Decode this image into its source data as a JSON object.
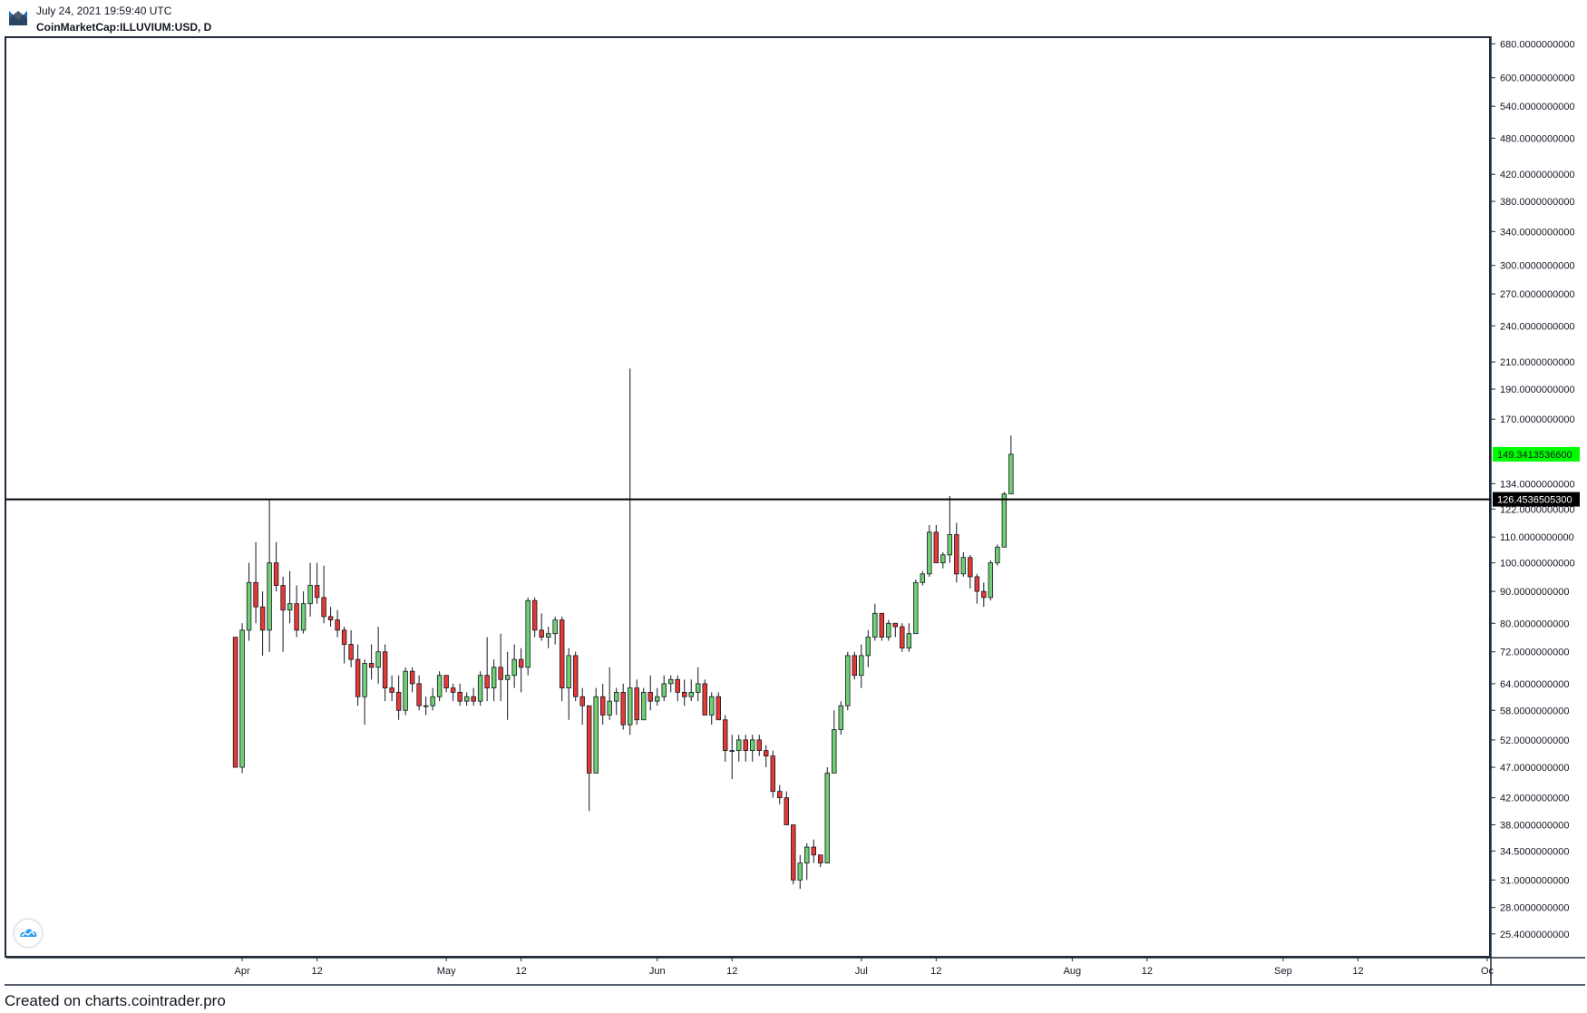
{
  "header": {
    "date": "July 24, 2021 19:59:40 UTC",
    "symbol": "CoinMarketCap:ILLUVIUM:USD, D",
    "logo_icon": "tradingview-logo-icon"
  },
  "footer": {
    "text": "Created on charts.cointrader.pro"
  },
  "watermark_icon": "tradingview-cloud-icon",
  "colors": {
    "up": "#6fcf72",
    "down": "#e53935",
    "wick": "#131722",
    "line": "#000000",
    "last_price_bg": "#00ff00"
  },
  "chart_data": {
    "type": "candlestick",
    "title": "",
    "scale": "log",
    "ylim": [
      23.5,
      690
    ],
    "y_ticks": [
      "680.0000000000",
      "600.0000000000",
      "540.0000000000",
      "480.0000000000",
      "420.0000000000",
      "380.0000000000",
      "340.0000000000",
      "300.0000000000",
      "270.0000000000",
      "240.0000000000",
      "210.0000000000",
      "190.0000000000",
      "170.0000000000",
      "134.0000000000",
      "122.0000000000",
      "110.0000000000",
      "100.0000000000",
      "90.0000000000",
      "80.0000000000",
      "72.0000000000",
      "64.0000000000",
      "58.0000000000",
      "52.0000000000",
      "47.0000000000",
      "42.0000000000",
      "38.0000000000",
      "34.5000000000",
      "31.0000000000",
      "28.0000000000",
      "25.4000000000"
    ],
    "x_ticks": [
      {
        "label": "Apr",
        "date": "2021-04-01"
      },
      {
        "label": "12",
        "date": "2021-04-12"
      },
      {
        "label": "May",
        "date": "2021-05-01"
      },
      {
        "label": "12",
        "date": "2021-05-12"
      },
      {
        "label": "Jun",
        "date": "2021-06-01"
      },
      {
        "label": "12",
        "date": "2021-06-12"
      },
      {
        "label": "Jul",
        "date": "2021-07-01"
      },
      {
        "label": "12",
        "date": "2021-07-12"
      },
      {
        "label": "Aug",
        "date": "2021-08-01"
      },
      {
        "label": "12",
        "date": "2021-08-12"
      },
      {
        "label": "Sep",
        "date": "2021-09-01"
      },
      {
        "label": "12",
        "date": "2021-09-12"
      },
      {
        "label": "Oc",
        "date": "2021-10-01"
      }
    ],
    "x_range": [
      "2021-03-02",
      "2021-10-01"
    ],
    "horizontal_line": {
      "value": 126.45365053,
      "label": "126.4536505300"
    },
    "last_price": {
      "value": 149.34135366,
      "label": "149.3413536600"
    },
    "candles": [
      {
        "date": "2021-03-31",
        "o": 76,
        "h": 76,
        "l": 47,
        "c": 47
      },
      {
        "date": "2021-04-01",
        "o": 47,
        "h": 80,
        "l": 46,
        "c": 78
      },
      {
        "date": "2021-04-02",
        "o": 78,
        "h": 100,
        "l": 75,
        "c": 93
      },
      {
        "date": "2021-04-03",
        "o": 93,
        "h": 108,
        "l": 80,
        "c": 85
      },
      {
        "date": "2021-04-04",
        "o": 85,
        "h": 90,
        "l": 71,
        "c": 78
      },
      {
        "date": "2021-04-05",
        "o": 78,
        "h": 126,
        "l": 72,
        "c": 100
      },
      {
        "date": "2021-04-06",
        "o": 100,
        "h": 108,
        "l": 90,
        "c": 92
      },
      {
        "date": "2021-04-07",
        "o": 92,
        "h": 95,
        "l": 72,
        "c": 84
      },
      {
        "date": "2021-04-08",
        "o": 84,
        "h": 97,
        "l": 80,
        "c": 86
      },
      {
        "date": "2021-04-09",
        "o": 86,
        "h": 92,
        "l": 76,
        "c": 78
      },
      {
        "date": "2021-04-10",
        "o": 78,
        "h": 90,
        "l": 77,
        "c": 86
      },
      {
        "date": "2021-04-11",
        "o": 86,
        "h": 100,
        "l": 82,
        "c": 92
      },
      {
        "date": "2021-04-12",
        "o": 92,
        "h": 100,
        "l": 86,
        "c": 88
      },
      {
        "date": "2021-04-13",
        "o": 88,
        "h": 99,
        "l": 80,
        "c": 82
      },
      {
        "date": "2021-04-14",
        "o": 82,
        "h": 85,
        "l": 79,
        "c": 81
      },
      {
        "date": "2021-04-15",
        "o": 81,
        "h": 84,
        "l": 76,
        "c": 78
      },
      {
        "date": "2021-04-16",
        "o": 78,
        "h": 79,
        "l": 69,
        "c": 74
      },
      {
        "date": "2021-04-17",
        "o": 74,
        "h": 78,
        "l": 68,
        "c": 70
      },
      {
        "date": "2021-04-18",
        "o": 70,
        "h": 74,
        "l": 59,
        "c": 61
      },
      {
        "date": "2021-04-19",
        "o": 61,
        "h": 70,
        "l": 55,
        "c": 69
      },
      {
        "date": "2021-04-20",
        "o": 69,
        "h": 74,
        "l": 65,
        "c": 68
      },
      {
        "date": "2021-04-21",
        "o": 68,
        "h": 79,
        "l": 64,
        "c": 72
      },
      {
        "date": "2021-04-22",
        "o": 72,
        "h": 74,
        "l": 60,
        "c": 63
      },
      {
        "date": "2021-04-23",
        "o": 63,
        "h": 66,
        "l": 60,
        "c": 62
      },
      {
        "date": "2021-04-24",
        "o": 62,
        "h": 66,
        "l": 56,
        "c": 58
      },
      {
        "date": "2021-04-25",
        "o": 58,
        "h": 68,
        "l": 57,
        "c": 67
      },
      {
        "date": "2021-04-26",
        "o": 67,
        "h": 68,
        "l": 62,
        "c": 64
      },
      {
        "date": "2021-04-27",
        "o": 64,
        "h": 66,
        "l": 58,
        "c": 59
      },
      {
        "date": "2021-04-28",
        "o": 59,
        "h": 61,
        "l": 57,
        "c": 59
      },
      {
        "date": "2021-04-29",
        "o": 59,
        "h": 63,
        "l": 58,
        "c": 61
      },
      {
        "date": "2021-04-30",
        "o": 61,
        "h": 67,
        "l": 60,
        "c": 66
      },
      {
        "date": "2021-05-01",
        "o": 66,
        "h": 66,
        "l": 62,
        "c": 63
      },
      {
        "date": "2021-05-02",
        "o": 63,
        "h": 64,
        "l": 60,
        "c": 62
      },
      {
        "date": "2021-05-03",
        "o": 62,
        "h": 64,
        "l": 59,
        "c": 60
      },
      {
        "date": "2021-05-04",
        "o": 60,
        "h": 62,
        "l": 59,
        "c": 61
      },
      {
        "date": "2021-05-05",
        "o": 61,
        "h": 63,
        "l": 59,
        "c": 60
      },
      {
        "date": "2021-05-06",
        "o": 60,
        "h": 67,
        "l": 59,
        "c": 66
      },
      {
        "date": "2021-05-07",
        "o": 66,
        "h": 76,
        "l": 60,
        "c": 63
      },
      {
        "date": "2021-05-08",
        "o": 63,
        "h": 70,
        "l": 60,
        "c": 68
      },
      {
        "date": "2021-05-09",
        "o": 68,
        "h": 77,
        "l": 60,
        "c": 65
      },
      {
        "date": "2021-05-10",
        "o": 65,
        "h": 72,
        "l": 56,
        "c": 66
      },
      {
        "date": "2021-05-11",
        "o": 66,
        "h": 74,
        "l": 63,
        "c": 70
      },
      {
        "date": "2021-05-12",
        "o": 70,
        "h": 73,
        "l": 62,
        "c": 68
      },
      {
        "date": "2021-05-13",
        "o": 68,
        "h": 88,
        "l": 66,
        "c": 87
      },
      {
        "date": "2021-05-14",
        "o": 87,
        "h": 88,
        "l": 76,
        "c": 78
      },
      {
        "date": "2021-05-15",
        "o": 78,
        "h": 83,
        "l": 75,
        "c": 76
      },
      {
        "date": "2021-05-16",
        "o": 76,
        "h": 79,
        "l": 73,
        "c": 77
      },
      {
        "date": "2021-05-17",
        "o": 77,
        "h": 82,
        "l": 74,
        "c": 81
      },
      {
        "date": "2021-05-18",
        "o": 81,
        "h": 82,
        "l": 60,
        "c": 63
      },
      {
        "date": "2021-05-19",
        "o": 63,
        "h": 73,
        "l": 56,
        "c": 71
      },
      {
        "date": "2021-05-20",
        "o": 71,
        "h": 72,
        "l": 60,
        "c": 61
      },
      {
        "date": "2021-05-21",
        "o": 61,
        "h": 63,
        "l": 55,
        "c": 59
      },
      {
        "date": "2021-05-22",
        "o": 59,
        "h": 59,
        "l": 40,
        "c": 46
      },
      {
        "date": "2021-05-23",
        "o": 46,
        "h": 63,
        "l": 46,
        "c": 61
      },
      {
        "date": "2021-05-24",
        "o": 61,
        "h": 64,
        "l": 55,
        "c": 57
      },
      {
        "date": "2021-05-25",
        "o": 57,
        "h": 68,
        "l": 56,
        "c": 60
      },
      {
        "date": "2021-05-26",
        "o": 60,
        "h": 63,
        "l": 57,
        "c": 62
      },
      {
        "date": "2021-05-27",
        "o": 62,
        "h": 64,
        "l": 54,
        "c": 55
      },
      {
        "date": "2021-05-28",
        "o": 55,
        "h": 205,
        "l": 53,
        "c": 63
      },
      {
        "date": "2021-05-29",
        "o": 63,
        "h": 65,
        "l": 55,
        "c": 56
      },
      {
        "date": "2021-05-30",
        "o": 56,
        "h": 63,
        "l": 56,
        "c": 62
      },
      {
        "date": "2021-05-31",
        "o": 62,
        "h": 66,
        "l": 58,
        "c": 60
      },
      {
        "date": "2021-06-01",
        "o": 60,
        "h": 63,
        "l": 59,
        "c": 61
      },
      {
        "date": "2021-06-02",
        "o": 61,
        "h": 66,
        "l": 60,
        "c": 64
      },
      {
        "date": "2021-06-03",
        "o": 64,
        "h": 66,
        "l": 62,
        "c": 65
      },
      {
        "date": "2021-06-04",
        "o": 65,
        "h": 66,
        "l": 60,
        "c": 62
      },
      {
        "date": "2021-06-05",
        "o": 62,
        "h": 65,
        "l": 59,
        "c": 61
      },
      {
        "date": "2021-06-06",
        "o": 61,
        "h": 65,
        "l": 60,
        "c": 62
      },
      {
        "date": "2021-06-07",
        "o": 62,
        "h": 68,
        "l": 60,
        "c": 64
      },
      {
        "date": "2021-06-08",
        "o": 64,
        "h": 65,
        "l": 57,
        "c": 57
      },
      {
        "date": "2021-06-09",
        "o": 57,
        "h": 62,
        "l": 55,
        "c": 61
      },
      {
        "date": "2021-06-10",
        "o": 61,
        "h": 62,
        "l": 56,
        "c": 56
      },
      {
        "date": "2021-06-11",
        "o": 56,
        "h": 57,
        "l": 48,
        "c": 50
      },
      {
        "date": "2021-06-12",
        "o": 50,
        "h": 53,
        "l": 45,
        "c": 50
      },
      {
        "date": "2021-06-13",
        "o": 50,
        "h": 53,
        "l": 48,
        "c": 52
      },
      {
        "date": "2021-06-14",
        "o": 52,
        "h": 53,
        "l": 48,
        "c": 50
      },
      {
        "date": "2021-06-15",
        "o": 50,
        "h": 53,
        "l": 48,
        "c": 52
      },
      {
        "date": "2021-06-16",
        "o": 52,
        "h": 53,
        "l": 49,
        "c": 50
      },
      {
        "date": "2021-06-17",
        "o": 50,
        "h": 51,
        "l": 47,
        "c": 49
      },
      {
        "date": "2021-06-18",
        "o": 49,
        "h": 50,
        "l": 42,
        "c": 43
      },
      {
        "date": "2021-06-19",
        "o": 43,
        "h": 44,
        "l": 41,
        "c": 42
      },
      {
        "date": "2021-06-20",
        "o": 42,
        "h": 43,
        "l": 38,
        "c": 38
      },
      {
        "date": "2021-06-21",
        "o": 38,
        "h": 38,
        "l": 30.5,
        "c": 31
      },
      {
        "date": "2021-06-22",
        "o": 31,
        "h": 34,
        "l": 30,
        "c": 33
      },
      {
        "date": "2021-06-23",
        "o": 33,
        "h": 35.5,
        "l": 31,
        "c": 35
      },
      {
        "date": "2021-06-24",
        "o": 35,
        "h": 36,
        "l": 33,
        "c": 34
      },
      {
        "date": "2021-06-25",
        "o": 34,
        "h": 34,
        "l": 32.5,
        "c": 33
      },
      {
        "date": "2021-06-26",
        "o": 33,
        "h": 47,
        "l": 33,
        "c": 46
      },
      {
        "date": "2021-06-27",
        "o": 46,
        "h": 58,
        "l": 46,
        "c": 54
      },
      {
        "date": "2021-06-28",
        "o": 54,
        "h": 60,
        "l": 53,
        "c": 59
      },
      {
        "date": "2021-06-29",
        "o": 59,
        "h": 72,
        "l": 58,
        "c": 71
      },
      {
        "date": "2021-06-30",
        "o": 71,
        "h": 72,
        "l": 65,
        "c": 66
      },
      {
        "date": "2021-07-01",
        "o": 66,
        "h": 74,
        "l": 63,
        "c": 71
      },
      {
        "date": "2021-07-02",
        "o": 71,
        "h": 78,
        "l": 68,
        "c": 76
      },
      {
        "date": "2021-07-03",
        "o": 76,
        "h": 86,
        "l": 75,
        "c": 83
      },
      {
        "date": "2021-07-04",
        "o": 83,
        "h": 83,
        "l": 75,
        "c": 76
      },
      {
        "date": "2021-07-05",
        "o": 76,
        "h": 81,
        "l": 75,
        "c": 80
      },
      {
        "date": "2021-07-06",
        "o": 80,
        "h": 80,
        "l": 76,
        "c": 79
      },
      {
        "date": "2021-07-07",
        "o": 79,
        "h": 80,
        "l": 72,
        "c": 73
      },
      {
        "date": "2021-07-08",
        "o": 73,
        "h": 80,
        "l": 72,
        "c": 77
      },
      {
        "date": "2021-07-09",
        "o": 77,
        "h": 94,
        "l": 77,
        "c": 93
      },
      {
        "date": "2021-07-10",
        "o": 93,
        "h": 97,
        "l": 92,
        "c": 96
      },
      {
        "date": "2021-07-11",
        "o": 96,
        "h": 115,
        "l": 95,
        "c": 112
      },
      {
        "date": "2021-07-12",
        "o": 112,
        "h": 115,
        "l": 100,
        "c": 100
      },
      {
        "date": "2021-07-13",
        "o": 100,
        "h": 104,
        "l": 98,
        "c": 103
      },
      {
        "date": "2021-07-14",
        "o": 103,
        "h": 128,
        "l": 100,
        "c": 111
      },
      {
        "date": "2021-07-15",
        "o": 111,
        "h": 116,
        "l": 93,
        "c": 96
      },
      {
        "date": "2021-07-16",
        "o": 96,
        "h": 104,
        "l": 95,
        "c": 102
      },
      {
        "date": "2021-07-17",
        "o": 102,
        "h": 103,
        "l": 91,
        "c": 95
      },
      {
        "date": "2021-07-18",
        "o": 95,
        "h": 96,
        "l": 86,
        "c": 90
      },
      {
        "date": "2021-07-19",
        "o": 90,
        "h": 93,
        "l": 85,
        "c": 88
      },
      {
        "date": "2021-07-20",
        "o": 88,
        "h": 101,
        "l": 87,
        "c": 100
      },
      {
        "date": "2021-07-21",
        "o": 100,
        "h": 107,
        "l": 99,
        "c": 106
      },
      {
        "date": "2021-07-22",
        "o": 106,
        "h": 130,
        "l": 106,
        "c": 129
      },
      {
        "date": "2021-07-23",
        "o": 129,
        "h": 160,
        "l": 129,
        "c": 149.34
      }
    ]
  }
}
